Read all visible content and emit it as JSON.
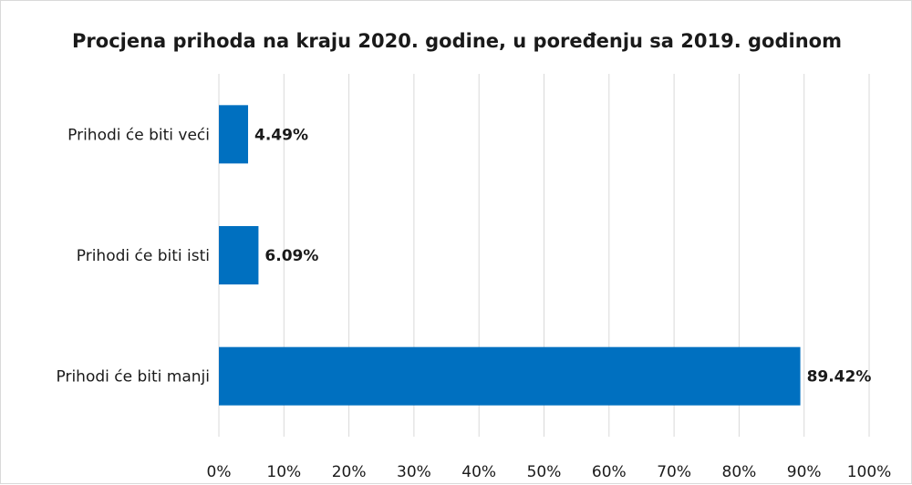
{
  "chart_data": {
    "type": "bar",
    "orientation": "horizontal",
    "title": "Procjena prihoda na kraju 2020. godine, u poređenju sa 2019. godinom",
    "categories": [
      "Prihodi će biti veći",
      "Prihodi će biti isti",
      "Prihodi će biti manji"
    ],
    "values": [
      4.49,
      6.09,
      89.42
    ],
    "data_labels": [
      "4.49%",
      "6.09%",
      "89.42%"
    ],
    "x_ticks": [
      "0%",
      "10%",
      "20%",
      "30%",
      "40%",
      "50%",
      "60%",
      "70%",
      "80%",
      "90%",
      "100%"
    ],
    "xlim": [
      0,
      100
    ],
    "xlabel": "",
    "ylabel": "",
    "grid": "vertical",
    "legend": "none",
    "bar_color": "#0070C0"
  }
}
